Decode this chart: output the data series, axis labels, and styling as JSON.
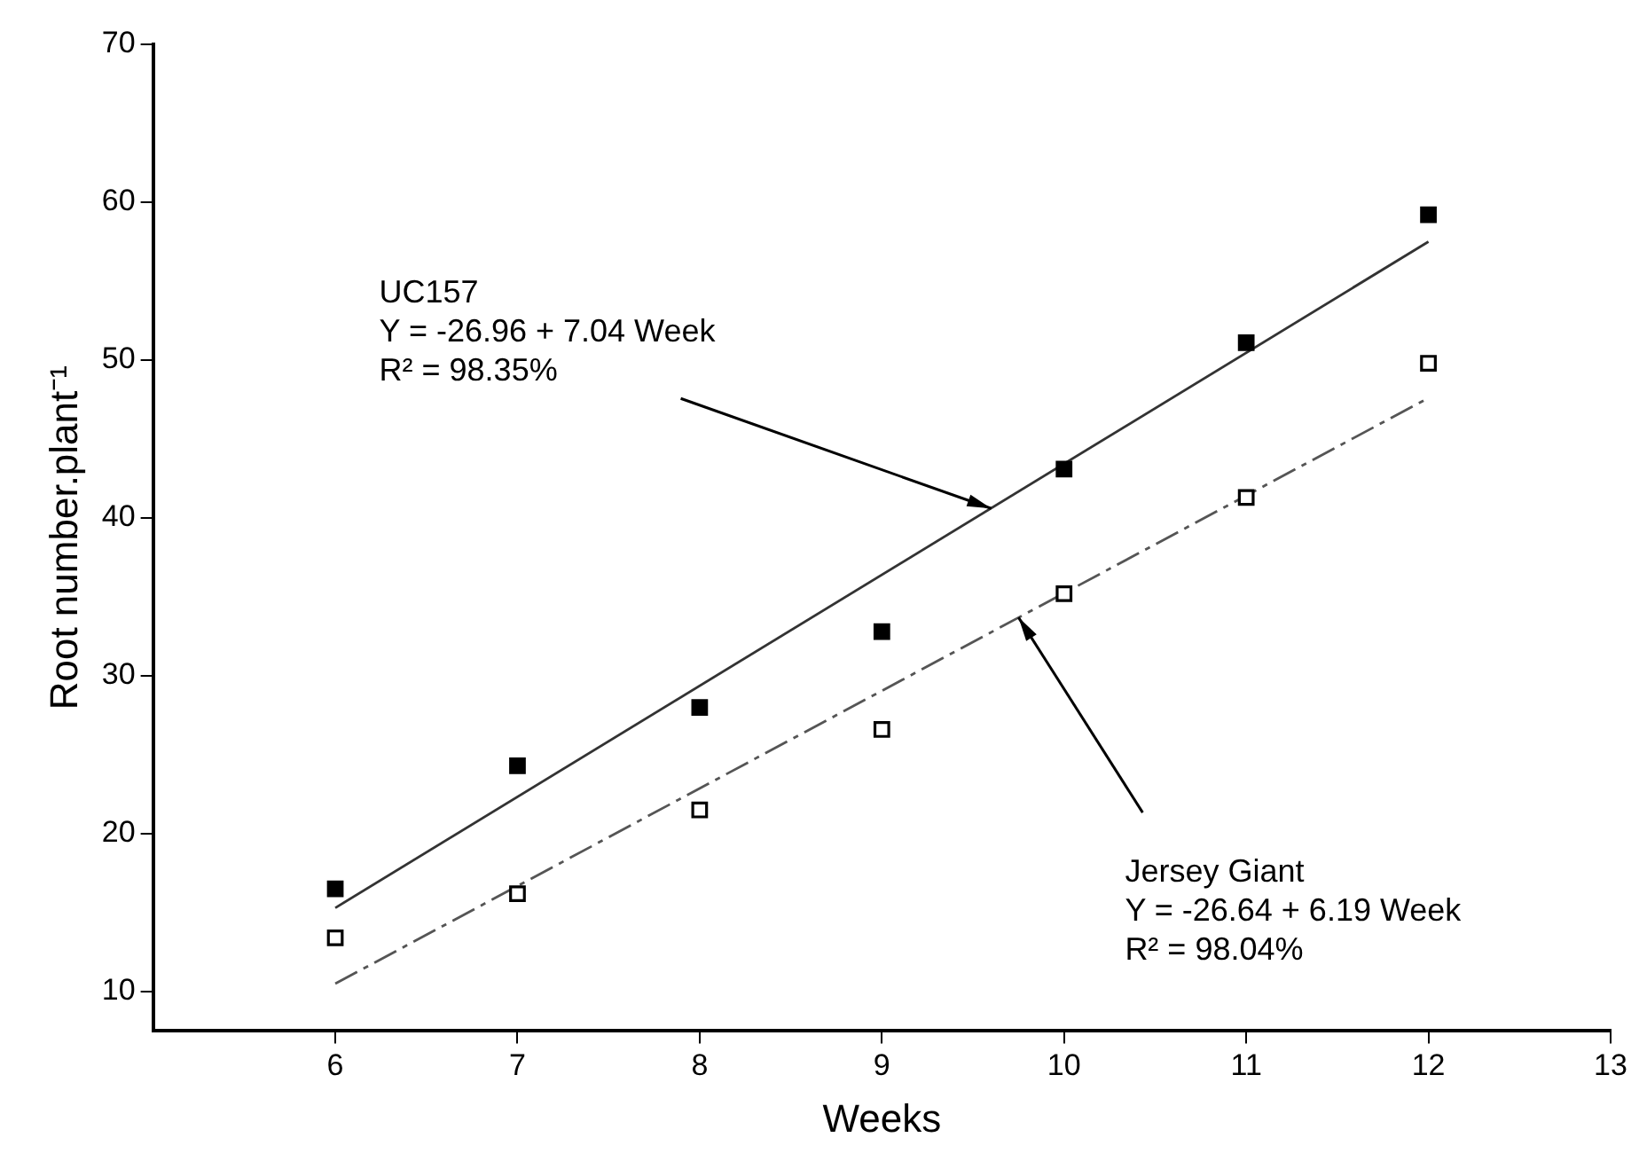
{
  "chart_data": {
    "type": "scatter",
    "xlabel": "Weeks",
    "ylabel": "Root number.plant⁻¹",
    "x": [
      6,
      7,
      8,
      9,
      10,
      11,
      12
    ],
    "series": [
      {
        "color": "#000000",
        "marker": "square",
        "values": [
          16.5,
          24.3,
          28.0,
          32.8,
          43.1,
          51.1,
          59.2
        ]
      },
      {
        "color": "#000000",
        "marker": "square",
        "values": [
          13.4,
          16.2,
          21.5,
          26.6,
          35.2,
          41.3,
          49.8
        ]
      },
      {
        "type": "line",
        "color": "#333333",
        "line_style": "solid",
        "marker": "none",
        "values": [
          15.3,
          null,
          null,
          null,
          null,
          null,
          57.5
        ]
      },
      {
        "type": "line",
        "color": "#555555",
        "line_style": "dashed",
        "marker": "none",
        "values": [
          10.5,
          null,
          null,
          null,
          null,
          null,
          47.6
        ]
      }
    ],
    "xlim": [
      5,
      13
    ],
    "xticks": [
      6,
      7,
      8,
      9,
      10,
      11,
      12,
      13
    ],
    "ylim": [
      7.5,
      70
    ],
    "yticks": [
      10,
      20,
      30,
      40,
      50,
      60,
      70
    ],
    "grid": false,
    "legend": false,
    "annotations": [
      {
        "text": "UC157\nY = -26.96 + 7.04 Week\nR² = 98.35%",
        "x": 9.6,
        "y": 40.6
      },
      {
        "text": "Jersey Giant\nY = -26.64 + 6.19 Week\nR² = 98.04%",
        "x": 9.75,
        "y": 33.7
      }
    ]
  }
}
